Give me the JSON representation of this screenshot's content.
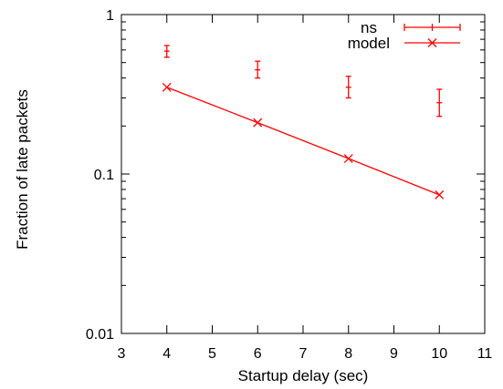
{
  "chart_data": {
    "type": "scatter",
    "xlabel": "Startup delay (sec)",
    "ylabel": "Fraction of late packets",
    "xlim": [
      3,
      11
    ],
    "ylim": [
      0.01,
      1
    ],
    "yscale": "log",
    "grid": false,
    "legend_position": "top-right",
    "x_ticks": [
      3,
      4,
      5,
      6,
      7,
      8,
      9,
      10,
      11
    ],
    "x_tick_labels": [
      "3",
      "4",
      "5",
      "6",
      "7",
      "8",
      "9",
      "10",
      "11"
    ],
    "y_ticks": [
      0.01,
      0.1,
      1
    ],
    "y_tick_labels": [
      "0.01",
      "0.1",
      "1"
    ],
    "series": [
      {
        "name": "ns",
        "style": "errorbars",
        "color": "#ff0000",
        "x": [
          4,
          6,
          8,
          10
        ],
        "y": [
          0.59,
          0.45,
          0.35,
          0.28
        ],
        "y_low": [
          0.54,
          0.4,
          0.3,
          0.23
        ],
        "y_high": [
          0.64,
          0.51,
          0.41,
          0.34
        ]
      },
      {
        "name": "model",
        "style": "linespoints",
        "marker": "x",
        "color": "#ff0000",
        "x": [
          4,
          6,
          8,
          10
        ],
        "y": [
          0.35,
          0.21,
          0.125,
          0.074
        ]
      }
    ]
  }
}
